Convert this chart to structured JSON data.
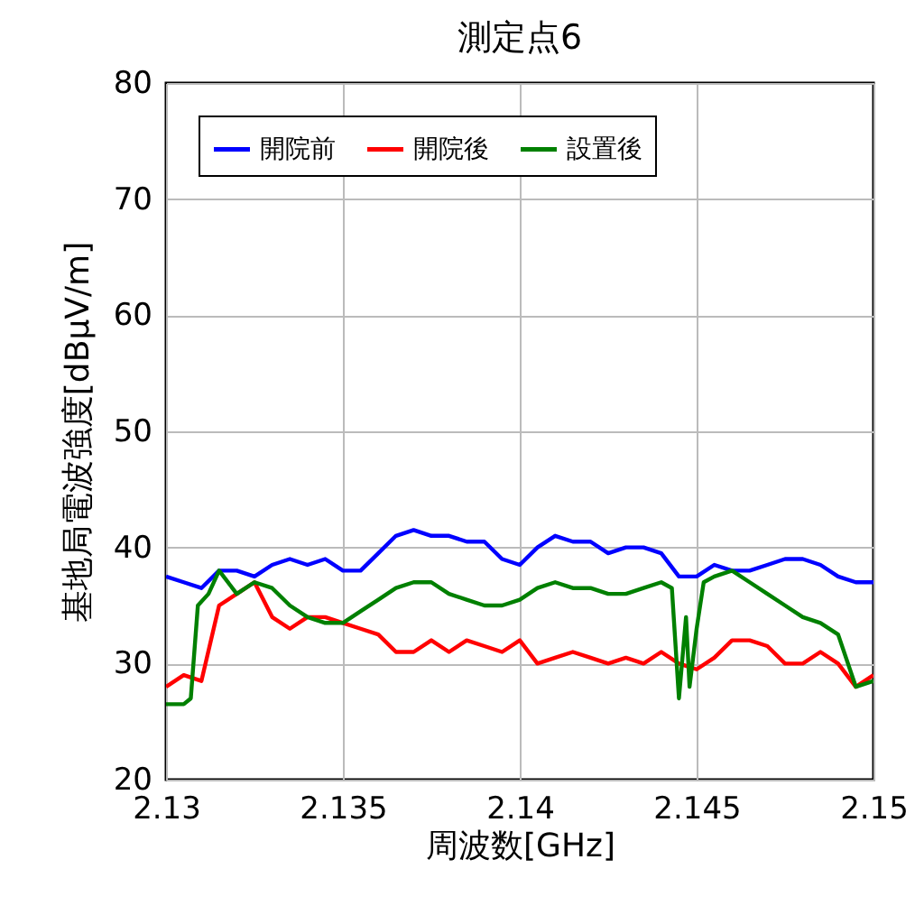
{
  "chart_data": {
    "type": "line",
    "title": "測定点6",
    "xlabel": "周波数[GHz]",
    "ylabel": "基地局電波強度[dBμV/m]",
    "xlim": [
      2.13,
      2.15
    ],
    "xticks": [
      2.13,
      2.135,
      2.14,
      2.145,
      2.15
    ],
    "ylim": [
      20,
      80
    ],
    "yticks": [
      20,
      30,
      40,
      50,
      60,
      70,
      80
    ],
    "grid": true,
    "legend": "top",
    "line_style": "solid",
    "marker": "none",
    "series": [
      {
        "name": "開院前",
        "color": "#0000ff",
        "x": [
          2.13,
          2.1305,
          2.131,
          2.1315,
          2.132,
          2.1325,
          2.133,
          2.1335,
          2.134,
          2.1345,
          2.135,
          2.1355,
          2.136,
          2.1365,
          2.137,
          2.1375,
          2.138,
          2.1385,
          2.139,
          2.1395,
          2.14,
          2.1405,
          2.141,
          2.1415,
          2.142,
          2.1425,
          2.143,
          2.1435,
          2.144,
          2.1445,
          2.145,
          2.1455,
          2.146,
          2.1465,
          2.147,
          2.1475,
          2.148,
          2.1485,
          2.149,
          2.1495,
          2.15
        ],
        "values": [
          37.5,
          37,
          36.5,
          38,
          38,
          37.5,
          38.5,
          39,
          38.5,
          39,
          38,
          38,
          39.5,
          41,
          41.5,
          41,
          41,
          40.5,
          40.5,
          39,
          38.5,
          40,
          41,
          40.5,
          40.5,
          39.5,
          40,
          40,
          39.5,
          37.5,
          37.5,
          38.5,
          38,
          38,
          38.5,
          39,
          39,
          38.5,
          37.5,
          37,
          37
        ]
      },
      {
        "name": "開院後",
        "color": "#ff0000",
        "x": [
          2.13,
          2.1305,
          2.131,
          2.1315,
          2.132,
          2.1325,
          2.133,
          2.1335,
          2.134,
          2.1345,
          2.135,
          2.1355,
          2.136,
          2.1365,
          2.137,
          2.1375,
          2.138,
          2.1385,
          2.139,
          2.1395,
          2.14,
          2.1405,
          2.141,
          2.1415,
          2.142,
          2.1425,
          2.143,
          2.1435,
          2.144,
          2.1445,
          2.145,
          2.1455,
          2.146,
          2.1465,
          2.147,
          2.1475,
          2.148,
          2.1485,
          2.149,
          2.1495,
          2.15
        ],
        "values": [
          28,
          29,
          28.5,
          35,
          36,
          37,
          34,
          33,
          34,
          34,
          33.5,
          33,
          32.5,
          31,
          31,
          32,
          31,
          32,
          31.5,
          31,
          32,
          30,
          30.5,
          31,
          30.5,
          30,
          30.5,
          30,
          31,
          30,
          29.5,
          30.5,
          32,
          32,
          31.5,
          30,
          30,
          31,
          30,
          28,
          29
        ]
      },
      {
        "name": "設置後",
        "color": "#008000",
        "x": [
          2.13,
          2.1305,
          2.1307,
          2.1309,
          2.1312,
          2.1315,
          2.132,
          2.1325,
          2.133,
          2.1335,
          2.134,
          2.1345,
          2.135,
          2.1355,
          2.136,
          2.1365,
          2.137,
          2.1375,
          2.138,
          2.1385,
          2.139,
          2.1395,
          2.14,
          2.1405,
          2.141,
          2.1415,
          2.142,
          2.1425,
          2.143,
          2.1435,
          2.144,
          2.1443,
          2.1445,
          2.1447,
          2.1448,
          2.145,
          2.1452,
          2.1455,
          2.146,
          2.1465,
          2.147,
          2.1475,
          2.148,
          2.1485,
          2.149,
          2.1495,
          2.15
        ],
        "values": [
          26.5,
          26.5,
          27,
          35,
          36,
          38,
          36,
          37,
          36.5,
          35,
          34,
          33.5,
          33.5,
          34.5,
          35.5,
          36.5,
          37,
          37,
          36,
          35.5,
          35,
          35,
          35.5,
          36.5,
          37,
          36.5,
          36.5,
          36,
          36,
          36.5,
          37,
          36.5,
          27,
          34,
          28,
          33,
          37,
          37.5,
          38,
          37,
          36,
          35,
          34,
          33.5,
          32.5,
          28,
          28.5
        ]
      }
    ]
  }
}
